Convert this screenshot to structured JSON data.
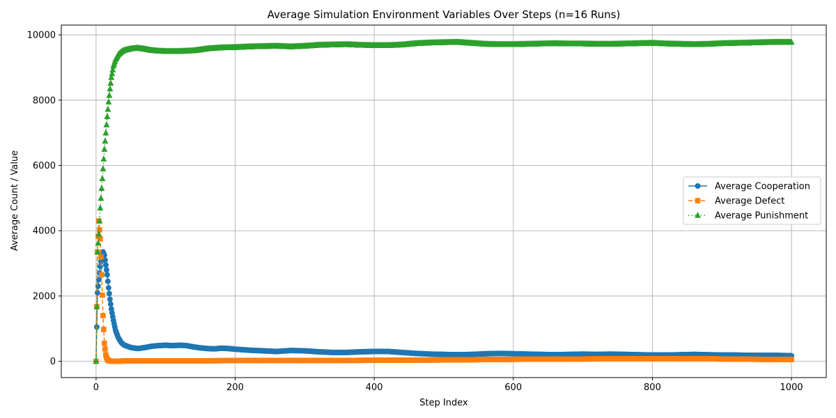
{
  "chart_data": {
    "type": "line",
    "title": "Average Simulation Environment Variables Over Steps (n=16 Runs)",
    "xlabel": "Step Index",
    "ylabel": "Average Count / Value",
    "xlim": [
      -50,
      1050
    ],
    "ylim": [
      -500,
      10300
    ],
    "xticks": [
      0,
      200,
      400,
      600,
      800,
      1000
    ],
    "yticks": [
      0,
      2000,
      4000,
      6000,
      8000,
      10000
    ],
    "xtick_labels": [
      "0",
      "200",
      "400",
      "600",
      "800",
      "1000"
    ],
    "ytick_labels": [
      "0",
      "2000",
      "4000",
      "6000",
      "8000",
      "10000"
    ],
    "grid": true,
    "legend_position": "center-right",
    "series": [
      {
        "name": "Average Cooperation",
        "color": "#1f77b4",
        "line_style": "solid",
        "marker": "circle",
        "points": [
          [
            0,
            0
          ],
          [
            2,
            2100
          ],
          [
            4,
            2500
          ],
          [
            6,
            2900
          ],
          [
            8,
            3200
          ],
          [
            10,
            3350
          ],
          [
            12,
            3250
          ],
          [
            14,
            2950
          ],
          [
            16,
            2650
          ],
          [
            18,
            2250
          ],
          [
            20,
            1900
          ],
          [
            22,
            1600
          ],
          [
            25,
            1250
          ],
          [
            28,
            950
          ],
          [
            32,
            720
          ],
          [
            36,
            580
          ],
          [
            40,
            500
          ],
          [
            50,
            420
          ],
          [
            60,
            390
          ],
          [
            70,
            420
          ],
          [
            80,
            460
          ],
          [
            90,
            480
          ],
          [
            100,
            490
          ],
          [
            110,
            480
          ],
          [
            120,
            490
          ],
          [
            130,
            480
          ],
          [
            140,
            440
          ],
          [
            150,
            410
          ],
          [
            160,
            390
          ],
          [
            170,
            380
          ],
          [
            180,
            400
          ],
          [
            190,
            390
          ],
          [
            200,
            370
          ],
          [
            220,
            340
          ],
          [
            240,
            320
          ],
          [
            260,
            300
          ],
          [
            280,
            330
          ],
          [
            300,
            320
          ],
          [
            320,
            290
          ],
          [
            340,
            270
          ],
          [
            360,
            270
          ],
          [
            380,
            290
          ],
          [
            400,
            300
          ],
          [
            420,
            300
          ],
          [
            440,
            270
          ],
          [
            460,
            240
          ],
          [
            480,
            220
          ],
          [
            500,
            210
          ],
          [
            520,
            200
          ],
          [
            540,
            210
          ],
          [
            560,
            230
          ],
          [
            580,
            240
          ],
          [
            600,
            230
          ],
          [
            620,
            220
          ],
          [
            640,
            210
          ],
          [
            660,
            200
          ],
          [
            680,
            210
          ],
          [
            700,
            220
          ],
          [
            720,
            210
          ],
          [
            740,
            220
          ],
          [
            760,
            210
          ],
          [
            780,
            200
          ],
          [
            800,
            190
          ],
          [
            820,
            190
          ],
          [
            840,
            200
          ],
          [
            860,
            210
          ],
          [
            880,
            200
          ],
          [
            900,
            190
          ],
          [
            920,
            190
          ],
          [
            940,
            180
          ],
          [
            960,
            180
          ],
          [
            980,
            180
          ],
          [
            1000,
            170
          ]
        ]
      },
      {
        "name": "Average Defect",
        "color": "#ff7f0e",
        "line_style": "dashed",
        "marker": "square",
        "points": [
          [
            0,
            0
          ],
          [
            2,
            3350
          ],
          [
            4,
            4300
          ],
          [
            6,
            3750
          ],
          [
            8,
            2650
          ],
          [
            10,
            1400
          ],
          [
            12,
            550
          ],
          [
            14,
            200
          ],
          [
            16,
            60
          ],
          [
            18,
            20
          ],
          [
            20,
            10
          ],
          [
            25,
            0
          ],
          [
            30,
            0
          ],
          [
            40,
            10
          ],
          [
            60,
            15
          ],
          [
            80,
            15
          ],
          [
            100,
            15
          ],
          [
            150,
            15
          ],
          [
            200,
            20
          ],
          [
            250,
            20
          ],
          [
            300,
            20
          ],
          [
            350,
            25
          ],
          [
            400,
            30
          ],
          [
            450,
            35
          ],
          [
            500,
            40
          ],
          [
            550,
            50
          ],
          [
            600,
            60
          ],
          [
            650,
            65
          ],
          [
            700,
            70
          ],
          [
            750,
            75
          ],
          [
            800,
            80
          ],
          [
            850,
            80
          ],
          [
            900,
            70
          ],
          [
            950,
            60
          ],
          [
            1000,
            55
          ]
        ]
      },
      {
        "name": "Average Punishment",
        "color": "#2ca02c",
        "line_style": "dotted",
        "marker": "triangle",
        "points": [
          [
            0,
            0
          ],
          [
            2,
            3350
          ],
          [
            4,
            3900
          ],
          [
            6,
            4700
          ],
          [
            8,
            5300
          ],
          [
            10,
            5900
          ],
          [
            12,
            6500
          ],
          [
            14,
            7000
          ],
          [
            16,
            7500
          ],
          [
            18,
            7950
          ],
          [
            20,
            8350
          ],
          [
            22,
            8700
          ],
          [
            25,
            9050
          ],
          [
            28,
            9250
          ],
          [
            32,
            9400
          ],
          [
            36,
            9480
          ],
          [
            40,
            9530
          ],
          [
            50,
            9580
          ],
          [
            60,
            9600
          ],
          [
            70,
            9570
          ],
          [
            80,
            9530
          ],
          [
            90,
            9510
          ],
          [
            100,
            9500
          ],
          [
            120,
            9500
          ],
          [
            140,
            9520
          ],
          [
            160,
            9580
          ],
          [
            180,
            9610
          ],
          [
            200,
            9620
          ],
          [
            220,
            9640
          ],
          [
            240,
            9650
          ],
          [
            260,
            9660
          ],
          [
            280,
            9640
          ],
          [
            300,
            9660
          ],
          [
            320,
            9690
          ],
          [
            340,
            9700
          ],
          [
            360,
            9710
          ],
          [
            380,
            9690
          ],
          [
            400,
            9680
          ],
          [
            420,
            9680
          ],
          [
            440,
            9700
          ],
          [
            460,
            9740
          ],
          [
            480,
            9760
          ],
          [
            500,
            9770
          ],
          [
            520,
            9780
          ],
          [
            540,
            9750
          ],
          [
            560,
            9720
          ],
          [
            580,
            9710
          ],
          [
            600,
            9710
          ],
          [
            620,
            9720
          ],
          [
            640,
            9730
          ],
          [
            660,
            9740
          ],
          [
            680,
            9730
          ],
          [
            700,
            9730
          ],
          [
            720,
            9720
          ],
          [
            740,
            9720
          ],
          [
            760,
            9730
          ],
          [
            780,
            9740
          ],
          [
            800,
            9750
          ],
          [
            820,
            9730
          ],
          [
            840,
            9720
          ],
          [
            860,
            9710
          ],
          [
            880,
            9720
          ],
          [
            900,
            9740
          ],
          [
            920,
            9750
          ],
          [
            940,
            9760
          ],
          [
            960,
            9770
          ],
          [
            980,
            9780
          ],
          [
            1000,
            9780
          ]
        ]
      }
    ]
  }
}
